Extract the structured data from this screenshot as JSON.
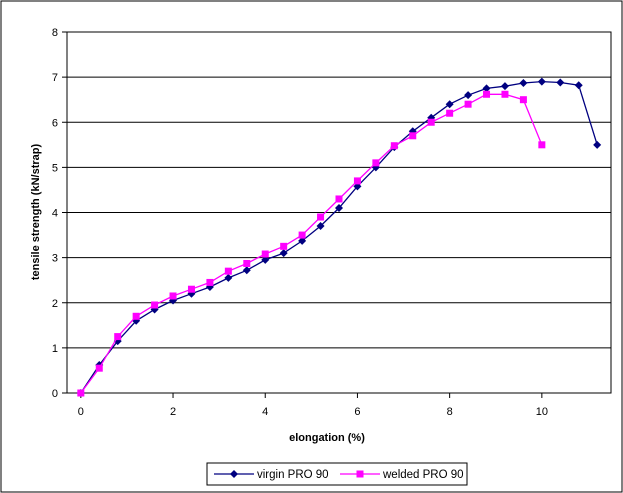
{
  "chart_data": {
    "type": "line",
    "title": "",
    "xlabel": "elongation (%)",
    "ylabel": "tensile strength (kN/strap)",
    "xlim": [
      -0.3,
      11.5
    ],
    "ylim": [
      0,
      8
    ],
    "x_ticks": [
      0,
      2,
      4,
      6,
      8,
      10
    ],
    "y_ticks": [
      0,
      1,
      2,
      3,
      4,
      5,
      6,
      7,
      8
    ],
    "grid": "horizontal",
    "legend_position": "bottom",
    "series": [
      {
        "name": "virgin PRO 90",
        "color": "#000080",
        "marker": "diamond",
        "x": [
          0,
          0.4,
          0.8,
          1.2,
          1.6,
          2.0,
          2.4,
          2.8,
          3.2,
          3.6,
          4.0,
          4.4,
          4.8,
          5.2,
          5.6,
          6.0,
          6.4,
          6.8,
          7.2,
          7.6,
          8.0,
          8.4,
          8.8,
          9.2,
          9.6,
          10.0,
          10.4,
          10.8,
          11.2
        ],
        "y": [
          0,
          0.62,
          1.15,
          1.6,
          1.85,
          2.05,
          2.2,
          2.35,
          2.55,
          2.72,
          2.95,
          3.1,
          3.37,
          3.7,
          4.1,
          4.58,
          5.0,
          5.45,
          5.8,
          6.1,
          6.4,
          6.6,
          6.75,
          6.8,
          6.87,
          6.9,
          6.88,
          6.82,
          5.5
        ]
      },
      {
        "name": "welded PRO 90",
        "color": "#ff00ff",
        "marker": "square",
        "x": [
          0,
          0.4,
          0.8,
          1.2,
          1.6,
          2.0,
          2.4,
          2.8,
          3.2,
          3.6,
          4.0,
          4.4,
          4.8,
          5.2,
          5.6,
          6.0,
          6.4,
          6.8,
          7.2,
          7.6,
          8.0,
          8.4,
          8.8,
          9.2,
          9.6,
          10.0
        ],
        "y": [
          0,
          0.55,
          1.25,
          1.7,
          1.95,
          2.15,
          2.3,
          2.45,
          2.7,
          2.87,
          3.08,
          3.25,
          3.5,
          3.9,
          4.3,
          4.7,
          5.1,
          5.48,
          5.7,
          6.0,
          6.2,
          6.4,
          6.62,
          6.62,
          6.5,
          5.5
        ]
      }
    ]
  }
}
